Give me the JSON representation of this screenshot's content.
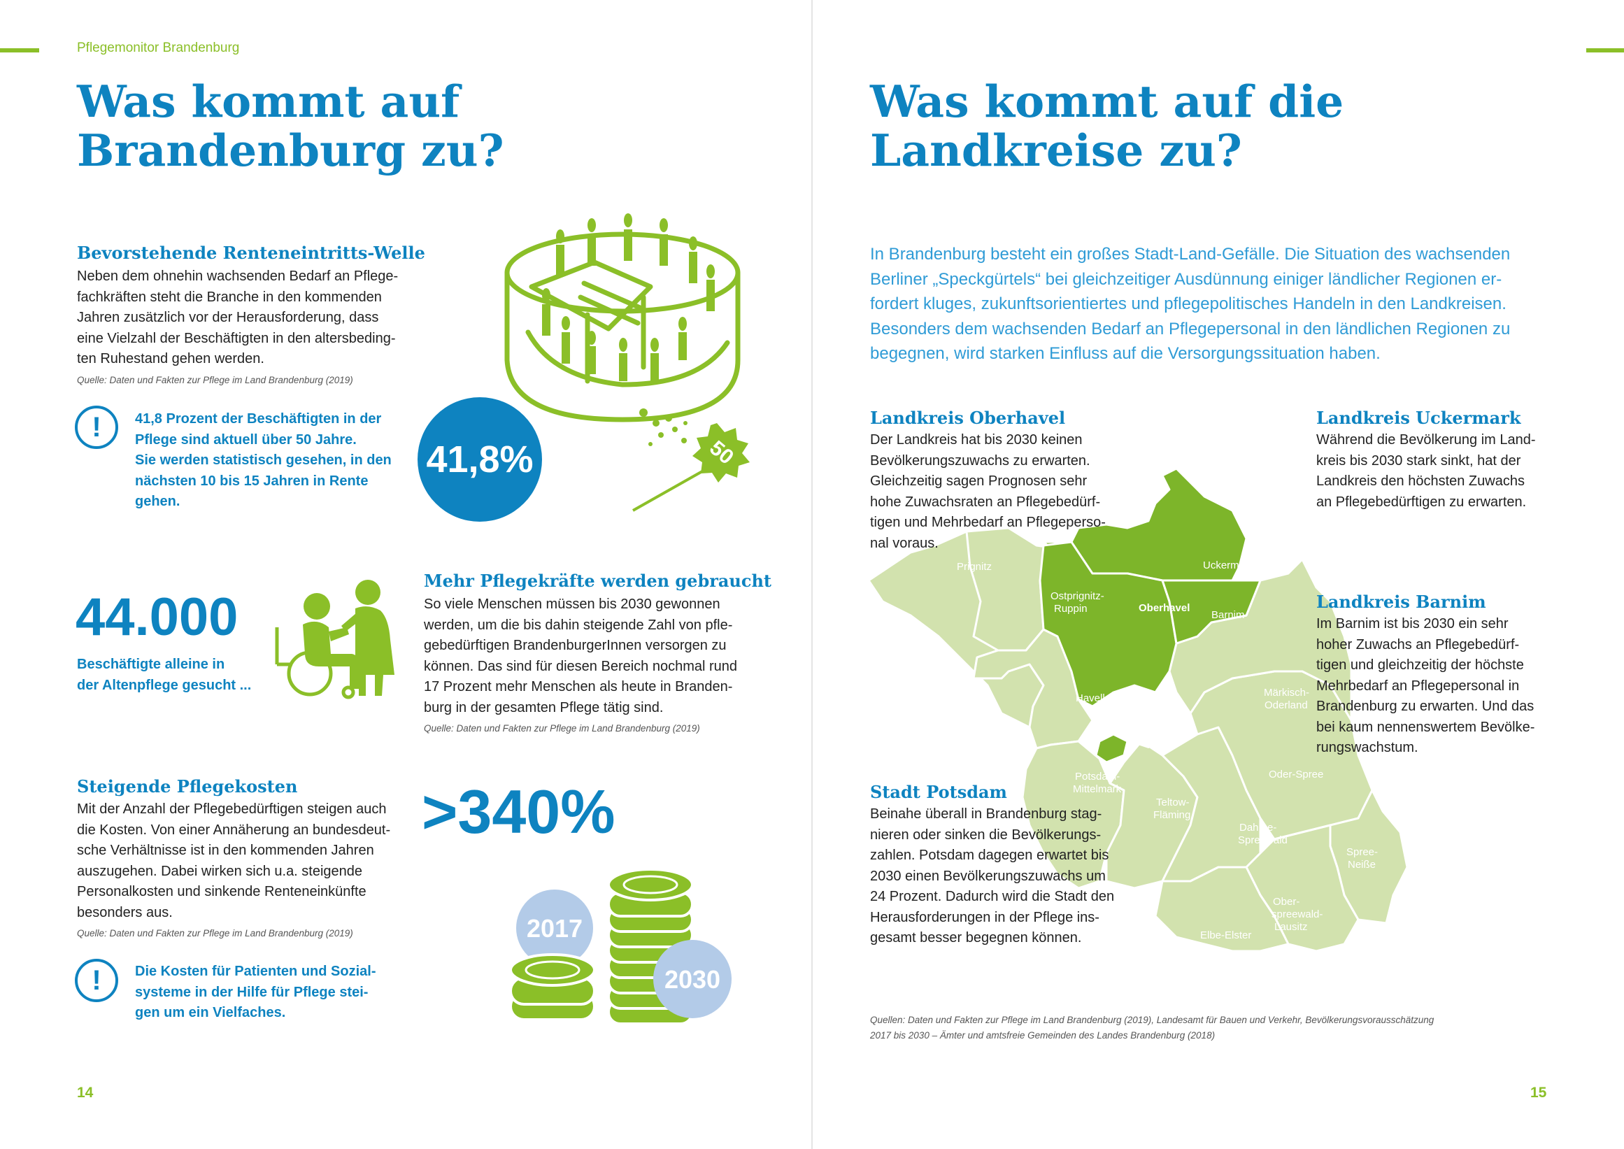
{
  "running_header": "Pflegemonitor Brandenburg",
  "left": {
    "title_line1": "Was kommt auf",
    "title_line2": "Brandenburg zu?",
    "section1": {
      "heading": "Bevorstehende Renteneintritts-Welle",
      "lines": [
        "Neben dem ohnehin wachsenden Bedarf an Pflege-",
        "fachkräften steht die Branche in den kommenden",
        "Jahren zusätzlich vor der Herausforderung, dass",
        "eine Vielzahl der Beschäftigten in den altersbeding-",
        "ten Ruhestand gehen werden."
      ],
      "source": "Quelle: Daten und Fakten zur Pflege im Land Brandenburg (2019)",
      "callout_lines": [
        "41,8 Prozent der Beschäftigten in der",
        "Pflege sind aktuell über 50 Jahre.",
        "Sie werden statistisch gesehen, in den",
        "nächsten 10 bis 15 Jahren in Rente",
        "gehen."
      ],
      "circle_value": "41,8%",
      "badge": "50"
    },
    "section2": {
      "big_number": "44.000",
      "big_caption_lines": [
        "Beschäftigte alleine in",
        "der Altenpflege gesucht ..."
      ],
      "heading": "Mehr Pflegekräfte werden gebraucht",
      "lines": [
        "So viele Menschen müssen bis 2030 gewonnen",
        "werden, um die bis dahin steigende Zahl von pfle-",
        "gebedürftigen BrandenburgerInnen versorgen zu",
        "können. Das sind für diesen Bereich nochmal rund",
        "17 Prozent mehr Menschen als heute in Branden-",
        "burg in der gesamten Pflege tätig sind."
      ],
      "source": "Quelle: Daten und Fakten zur Pflege im Land Brandenburg (2019)"
    },
    "section3": {
      "heading": "Steigende Pflegekosten",
      "lines": [
        "Mit der Anzahl der Pflegebedürftigen steigen auch",
        "die Kosten. Von einer Annäherung an bundesdeut-",
        "sche Verhältnisse ist in den kommenden Jahren",
        "auszugehen. Dabei wirken sich u.a. steigende",
        "Personalkosten und sinkende Renteneinkünfte",
        "besonders aus."
      ],
      "source": "Quelle: Daten und Fakten zur Pflege im Land Brandenburg (2019)",
      "callout_lines": [
        "Die Kosten für Patienten und Sozial-",
        "systeme in der Hilfe für Pflege stei-",
        "gen um ein Vielfaches."
      ],
      "big_value": ">340%",
      "year1": "2017",
      "year2": "2030"
    },
    "page_number": "14"
  },
  "right": {
    "title_line1": "Was kommt auf die",
    "title_line2": "Landkreise zu?",
    "intro_lines": [
      "In Brandenburg besteht ein großes Stadt-Land-Gefälle. Die Situation des wachsenden",
      "Berliner „Speckgürtels“ bei gleichzeitiger Ausdünnung einiger ländlicher Regionen er-",
      "fordert kluges, zukunftsorientiertes und pflegepolitisches Handeln in den Landkreisen.",
      "Besonders dem wachsenden Bedarf an Pflegepersonal in den ländlichen Regionen zu",
      "begegnen, wird starken Einfluss auf die Versorgungssituation haben."
    ],
    "oberhavel": {
      "heading": "Landkreis Oberhavel",
      "lines": [
        "Der Landkreis hat bis 2030 keinen",
        "Bevölkerungszuwachs zu erwarten.",
        "Gleichzeitig sagen Prognosen sehr",
        "hohe Zuwachsraten an Pflegebedürf-",
        "tigen und Mehrbedarf an Pflegeperso-",
        "nal voraus."
      ]
    },
    "uckermark": {
      "heading": "Landkreis Uckermark",
      "lines": [
        "Während die Bevölkerung im Land-",
        "kreis bis 2030 stark sinkt, hat der",
        "Landkreis den höchsten Zuwachs",
        "an Pflegebedürftigen zu erwarten."
      ]
    },
    "barnim": {
      "heading": "Landkreis Barnim",
      "lines": [
        "Im Barnim ist bis 2030 ein sehr",
        "hoher Zuwachs an Pflegebedürf-",
        "tigen und gleichzeitig der höchste",
        "Mehrbedarf an Pflegepersonal in",
        "Brandenburg zu erwarten. Und das",
        "bei kaum nennenswertem Bevölke-",
        "rungswachstum."
      ]
    },
    "potsdam": {
      "heading": "Stadt Potsdam",
      "lines": [
        "Beinahe überall in Brandenburg stag-",
        "nieren oder sinken die Bevölkerungs-",
        "zahlen. Potsdam dagegen erwartet bis",
        "2030 einen Bevölkerungszuwachs um",
        "24 Prozent. Dadurch wird die Stadt den",
        "Herausforderungen in der Pflege ins-",
        "gesamt besser begegnen können."
      ]
    },
    "map_labels": {
      "prignitz": "Prignitz",
      "ostprignitz1": "Ostprignitz-",
      "ostprignitz2": "Ruppin",
      "uckermark": "Uckermark",
      "oberhavel": "Oberhavel",
      "barnim": "Barnim",
      "havelland": "Havelland",
      "mol1": "Märkisch-",
      "mol2": "Oderland",
      "pm1": "Potsdam-",
      "pm2": "Mittelmark",
      "oderspree": "Oder-Spree",
      "tf1": "Teltow-",
      "tf2": "Fläming",
      "lds1": "Dahme-",
      "lds2": "Spreewald",
      "spn1": "Spree-",
      "spn2": "Neiße",
      "osl1": "Ober-",
      "osl2": "spreewald-",
      "osl3": "Lausitz",
      "ee": "Elbe-Elster"
    },
    "sources_lines": [
      "Quellen: Daten und Fakten zur Pflege im Land Brandenburg (2019), Landesamt für Bauen und Verkehr, Bevölkerungsvorausschätzung",
      "2017 bis 2030 – Ämter und amtsfreie Gemeinden des Landes Brandenburg (2018)"
    ],
    "page_number": "15"
  },
  "colors": {
    "blue": "#0e83c0",
    "green": "#8bbf28",
    "map_light": "#d2e2ae",
    "map_dark": "#7db52a",
    "circle_light": "#b3cbe8"
  }
}
